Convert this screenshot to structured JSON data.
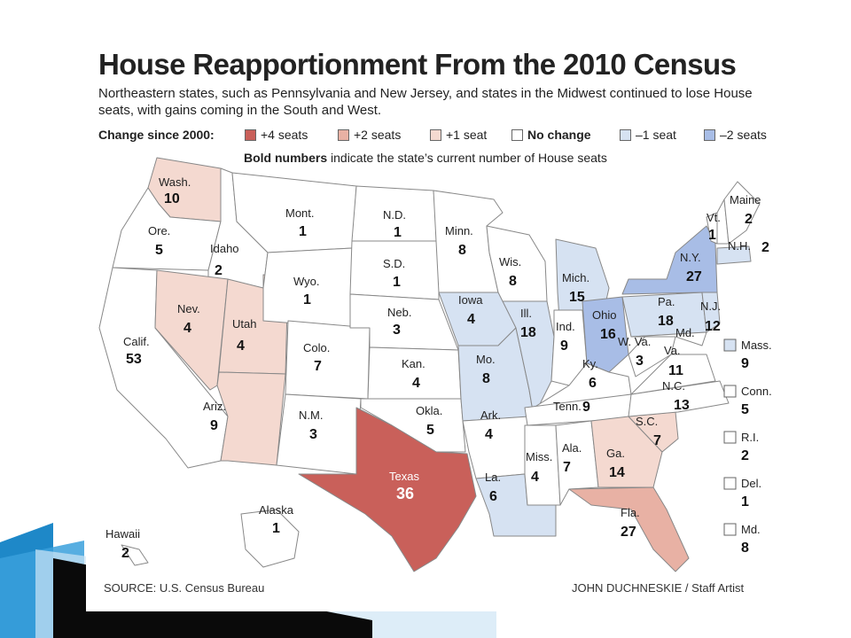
{
  "title": "House Reapportionment From the 2010 Census",
  "subtitle": "Northeastern states, such as Pennsylvania and New Jersey, and states in the Midwest continued to lose House seats, with gains coming in the South and West.",
  "legend": {
    "heading": "Change since 2000:",
    "items": [
      {
        "label": "+4 seats",
        "color": "#c9605a"
      },
      {
        "label": "+2 seats",
        "color": "#e8b1a4"
      },
      {
        "label": "+1 seat",
        "color": "#f4d9d0"
      },
      {
        "label": "No change",
        "color": "#ffffff"
      },
      {
        "label": "–1 seat",
        "color": "#d6e2f2"
      },
      {
        "label": "–2 seats",
        "color": "#a8bde6"
      }
    ],
    "bold_note_bold": "Bold numbers",
    "bold_note_rest": " indicate the state’s current number of House seats"
  },
  "states": [
    {
      "id": "wa",
      "label": "Wash.",
      "seats": "10",
      "change": 1
    },
    {
      "id": "or",
      "label": "Ore.",
      "seats": "5",
      "change": 0
    },
    {
      "id": "ca",
      "label": "Calif.",
      "seats": "53",
      "change": 0
    },
    {
      "id": "id",
      "label": "Idaho",
      "seats": "2",
      "change": 0
    },
    {
      "id": "nv",
      "label": "Nev.",
      "seats": "4",
      "change": 1
    },
    {
      "id": "ut",
      "label": "Utah",
      "seats": "4",
      "change": 1
    },
    {
      "id": "az",
      "label": "Ariz.",
      "seats": "9",
      "change": 1
    },
    {
      "id": "mt",
      "label": "Mont.",
      "seats": "1",
      "change": 0
    },
    {
      "id": "wy",
      "label": "Wyo.",
      "seats": "1",
      "change": 0
    },
    {
      "id": "co",
      "label": "Colo.",
      "seats": "7",
      "change": 0
    },
    {
      "id": "nm",
      "label": "N.M.",
      "seats": "3",
      "change": 0
    },
    {
      "id": "nd",
      "label": "N.D.",
      "seats": "1",
      "change": 0
    },
    {
      "id": "sd",
      "label": "S.D.",
      "seats": "1",
      "change": 0
    },
    {
      "id": "ne",
      "label": "Neb.",
      "seats": "3",
      "change": 0
    },
    {
      "id": "ks",
      "label": "Kan.",
      "seats": "4",
      "change": 0
    },
    {
      "id": "ok",
      "label": "Okla.",
      "seats": "5",
      "change": 0
    },
    {
      "id": "tx",
      "label": "Texas",
      "seats": "36",
      "change": 4
    },
    {
      "id": "mn",
      "label": "Minn.",
      "seats": "8",
      "change": 0
    },
    {
      "id": "ia",
      "label": "Iowa",
      "seats": "4",
      "change": -1
    },
    {
      "id": "mo",
      "label": "Mo.",
      "seats": "8",
      "change": -1
    },
    {
      "id": "ar",
      "label": "Ark.",
      "seats": "4",
      "change": 0
    },
    {
      "id": "la",
      "label": "La.",
      "seats": "6",
      "change": -1
    },
    {
      "id": "wi",
      "label": "Wis.",
      "seats": "8",
      "change": 0
    },
    {
      "id": "il",
      "label": "Ill.",
      "seats": "18",
      "change": -1
    },
    {
      "id": "mi",
      "label": "Mich.",
      "seats": "15",
      "change": -1
    },
    {
      "id": "in",
      "label": "Ind.",
      "seats": "9",
      "change": 0
    },
    {
      "id": "oh",
      "label": "Ohio",
      "seats": "16",
      "change": -2
    },
    {
      "id": "ky",
      "label": "Ky.",
      "seats": "6",
      "change": 0
    },
    {
      "id": "tn",
      "label": "Tenn.",
      "seats": "9",
      "change": 0
    },
    {
      "id": "ms",
      "label": "Miss.",
      "seats": "4",
      "change": 0
    },
    {
      "id": "al",
      "label": "Ala.",
      "seats": "7",
      "change": 0
    },
    {
      "id": "ga",
      "label": "Ga.",
      "seats": "14",
      "change": 1
    },
    {
      "id": "fl",
      "label": "Fla.",
      "seats": "27",
      "change": 2
    },
    {
      "id": "sc",
      "label": "S.C.",
      "seats": "7",
      "change": 1
    },
    {
      "id": "nc",
      "label": "N.C.",
      "seats": "13",
      "change": 0
    },
    {
      "id": "va",
      "label": "Va.",
      "seats": "11",
      "change": 0
    },
    {
      "id": "wv",
      "label": "W. Va.",
      "seats": "3",
      "change": 0
    },
    {
      "id": "pa",
      "label": "Pa.",
      "seats": "18",
      "change": -1
    },
    {
      "id": "ny",
      "label": "N.Y.",
      "seats": "27",
      "change": -2
    },
    {
      "id": "nj",
      "label": "N.J.",
      "seats": "12",
      "change": -1
    },
    {
      "id": "md",
      "label": "Md.",
      "seats": "",
      "change": 0
    },
    {
      "id": "vt",
      "label": "Vt.",
      "seats": "1",
      "change": 0
    },
    {
      "id": "nh",
      "label": "N.H.",
      "seats": "2",
      "change": 0
    },
    {
      "id": "me",
      "label": "Maine",
      "seats": "2",
      "change": 0
    },
    {
      "id": "ak",
      "label": "Alaska",
      "seats": "1",
      "change": 0
    },
    {
      "id": "hi",
      "label": "Hawaii",
      "seats": "2",
      "change": 0
    }
  ],
  "side_states": [
    {
      "label": "Mass.",
      "seats": "9",
      "change": -1
    },
    {
      "label": "Conn.",
      "seats": "5",
      "change": 0
    },
    {
      "label": "R.I.",
      "seats": "2",
      "change": 0
    },
    {
      "label": "Del.",
      "seats": "1",
      "change": 0
    },
    {
      "label": "Md.",
      "seats": "8",
      "change": 0
    }
  ],
  "source": "SOURCE: U.S. Census Bureau",
  "credit": "JOHN DUCHNESKIE / Staff Artist"
}
